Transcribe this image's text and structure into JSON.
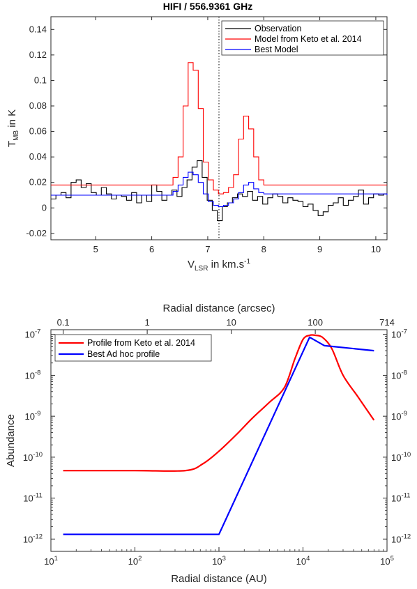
{
  "chart_data": [
    {
      "type": "line",
      "title": "HIFI / 556.9361 GHz",
      "xlabel": "V",
      "xlabel_sub": "LSR",
      "xlabel_suffix": " in km.s",
      "xlabel_sup": "-1",
      "ylabel": "T",
      "ylabel_sub": "MB",
      "ylabel_suffix": " in K",
      "xlim": [
        4.2,
        10.2
      ],
      "ylim": [
        -0.025,
        0.15
      ],
      "x_ticks": [
        5,
        6,
        7,
        8,
        9,
        10
      ],
      "x_tick_labels": [
        "5",
        "6",
        "7",
        "8",
        "9",
        "10"
      ],
      "y_ticks": [
        -0.02,
        0,
        0.02,
        0.04,
        0.06,
        0.08,
        0.1,
        0.12,
        0.14
      ],
      "y_tick_labels": [
        "-0.02",
        "0",
        "0.02",
        "0.04",
        "0.06",
        "0.08",
        "0.1",
        "0.12",
        "0.14"
      ],
      "vline_x": 7.2,
      "legend_position": "top-right",
      "grid": false,
      "series": [
        {
          "name": "Observation",
          "color": "#000000",
          "step": true,
          "x": [
            4.2,
            4.29,
            4.38,
            4.47,
            4.56,
            4.65,
            4.74,
            4.83,
            4.92,
            5.01,
            5.1,
            5.19,
            5.28,
            5.37,
            5.46,
            5.55,
            5.64,
            5.73,
            5.82,
            5.91,
            6.0,
            6.09,
            6.18,
            6.27,
            6.36,
            6.45,
            6.54,
            6.63,
            6.72,
            6.81,
            6.9,
            6.99,
            7.08,
            7.17,
            7.26,
            7.35,
            7.44,
            7.53,
            7.62,
            7.71,
            7.8,
            7.89,
            7.98,
            8.07,
            8.16,
            8.25,
            8.34,
            8.43,
            8.52,
            8.61,
            8.7,
            8.79,
            8.88,
            8.97,
            9.06,
            9.15,
            9.24,
            9.33,
            9.42,
            9.51,
            9.6,
            9.69,
            9.78,
            9.87,
            9.96,
            10.05,
            10.14
          ],
          "y": [
            0.007,
            0.01,
            0.012,
            0.008,
            0.02,
            0.022,
            0.016,
            0.019,
            0.012,
            0.01,
            0.016,
            0.011,
            0.007,
            0.01,
            0.009,
            0.006,
            0.012,
            0.004,
            0.01,
            0.005,
            0.018,
            0.013,
            0.006,
            0.01,
            0.014,
            0.009,
            0.016,
            0.022,
            0.032,
            0.037,
            0.024,
            0.006,
            -0.002,
            -0.01,
            0.001,
            0.004,
            0.008,
            0.011,
            0.009,
            0.013,
            0.006,
            0.009,
            0.003,
            0.008,
            0.011,
            0.009,
            0.004,
            0.008,
            0.006,
            0.005,
            0.001,
            0.003,
            -0.002,
            -0.006,
            -0.003,
            0.002,
            0.004,
            0.008,
            0.002,
            0.006,
            0.009,
            0.014,
            0.003,
            0.008,
            0.011,
            0.01,
            0.011
          ]
        },
        {
          "name": "Model from Keto et al. 2014",
          "color": "#ff0000",
          "step": true,
          "x": [
            4.2,
            6.38,
            6.47,
            6.56,
            6.65,
            6.74,
            6.83,
            6.92,
            7.01,
            7.1,
            7.19,
            7.28,
            7.37,
            7.46,
            7.55,
            7.64,
            7.73,
            7.82,
            7.91,
            8.0,
            10.2
          ],
          "y": [
            0.018,
            0.024,
            0.04,
            0.08,
            0.114,
            0.108,
            0.078,
            0.036,
            0.022,
            0.014,
            0.011,
            0.012,
            0.016,
            0.026,
            0.054,
            0.072,
            0.062,
            0.04,
            0.022,
            0.018,
            0.018
          ]
        },
        {
          "name": "Best Model",
          "color": "#0000ff",
          "step": true,
          "x": [
            4.2,
            6.38,
            6.47,
            6.56,
            6.65,
            6.74,
            6.83,
            6.92,
            7.01,
            7.1,
            7.19,
            7.28,
            7.37,
            7.46,
            7.55,
            7.64,
            7.73,
            7.82,
            7.91,
            8.0,
            10.2
          ],
          "y": [
            0.01,
            0.013,
            0.018,
            0.024,
            0.028,
            0.026,
            0.02,
            0.011,
            0.005,
            0.002,
            0.001,
            0.002,
            0.004,
            0.007,
            0.012,
            0.018,
            0.02,
            0.015,
            0.012,
            0.011,
            0.01
          ]
        }
      ]
    },
    {
      "type": "line",
      "xlabel": "Radial distance (AU)",
      "ylabel": "Abundance",
      "top_xlabel": "Radial distance (arcsec)",
      "x_scale": "log",
      "y_scale": "log",
      "xlim": [
        10,
        100000
      ],
      "ylim": [
        5e-13,
        1.3e-07
      ],
      "x_ticks": [
        10,
        100,
        1000,
        10000,
        100000
      ],
      "x_tick_base": [
        "10",
        "10",
        "10",
        "10",
        "10"
      ],
      "x_tick_exp": [
        "1",
        "2",
        "3",
        "4",
        "5"
      ],
      "y_ticks": [
        1e-12,
        1e-11,
        1e-10,
        1e-09,
        1e-08,
        1e-07
      ],
      "y_tick_base": [
        "10",
        "10",
        "10",
        "10",
        "10",
        "10"
      ],
      "y_tick_exp": [
        "-12",
        "-11",
        "-10",
        "-9",
        "-8",
        "-7"
      ],
      "top_ticks_au": [
        14,
        140,
        1400,
        14000,
        100000
      ],
      "top_tick_labels": [
        "0.1",
        "1",
        "10",
        "100",
        "714"
      ],
      "legend_position": "top-left",
      "grid": false,
      "series": [
        {
          "name": "Profile from Keto et al. 2014",
          "color": "#ff0000",
          "x": [
            14,
            100,
            400,
            650,
            1000,
            1600,
            2500,
            4000,
            6000,
            8000,
            10000,
            12000,
            14000,
            17000,
            22000,
            30000,
            45000,
            70000
          ],
          "y": [
            4.7e-11,
            4.7e-11,
            4.7e-11,
            7e-11,
            1.4e-10,
            3.5e-10,
            9e-10,
            2.2e-09,
            5e-09,
            2.5e-08,
            7.5e-08,
            9.5e-08,
            9.5e-08,
            8.5e-08,
            4.5e-08,
            1e-08,
            3e-09,
            8e-10
          ]
        },
        {
          "name": "Best Ad hoc profile",
          "color": "#0000ff",
          "x": [
            14,
            1000,
            12000,
            18000,
            70000
          ],
          "y": [
            1.3e-12,
            1.3e-12,
            8.5e-08,
            5.3e-08,
            4e-08
          ]
        }
      ]
    }
  ]
}
